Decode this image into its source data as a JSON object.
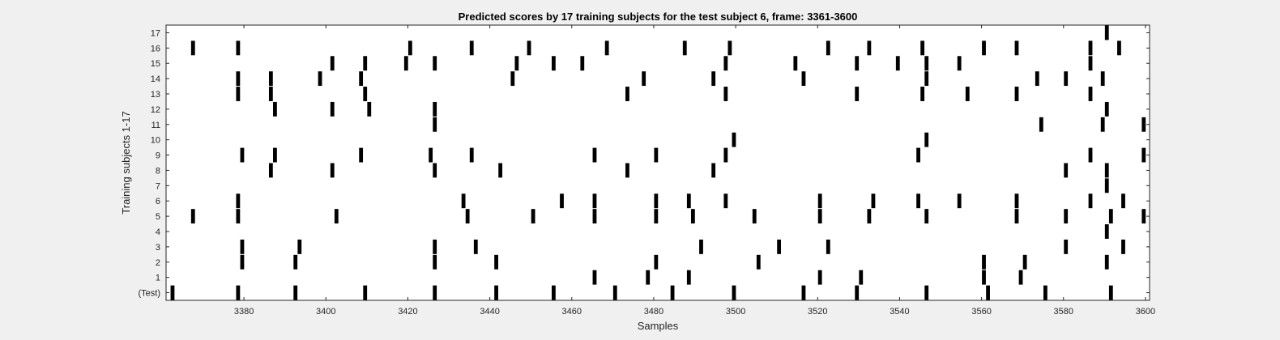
{
  "chart_data": {
    "type": "heatmap",
    "title": "Predicted scores by 17 training subjects for the test subject 6, frame: 3361-3600",
    "xlabel": "Samples",
    "ylabel": "Training subjects 1-17",
    "xlim": [
      3361,
      3600
    ],
    "x_ticks": [
      3380,
      3400,
      3420,
      3440,
      3460,
      3480,
      3500,
      3520,
      3540,
      3560,
      3580,
      3600
    ],
    "y_ticks": [
      "(Test)",
      "1",
      "2",
      "3",
      "4",
      "5",
      "6",
      "7",
      "8",
      "9",
      "10",
      "11",
      "12",
      "13",
      "14",
      "15",
      "16",
      "17"
    ],
    "mark_color": "#000000",
    "background_color": "#ffffff",
    "grid": false,
    "rows": [
      {
        "label": "(Test)",
        "x": [
          3363,
          3379,
          3393,
          3410,
          3427,
          3442,
          3456,
          3471,
          3485,
          3500,
          3517,
          3530,
          3547,
          3562,
          3576,
          3592
        ]
      },
      {
        "label": "1",
        "x": [
          3466,
          3479,
          3489,
          3521,
          3531,
          3561,
          3570
        ]
      },
      {
        "label": "2",
        "x": [
          3380,
          3393,
          3427,
          3442,
          3481,
          3506,
          3561,
          3571,
          3591
        ]
      },
      {
        "label": "3",
        "x": [
          3380,
          3394,
          3427,
          3437,
          3492,
          3511,
          3523,
          3581,
          3595
        ]
      },
      {
        "label": "4",
        "x": [
          3591
        ]
      },
      {
        "label": "5",
        "x": [
          3368,
          3379,
          3403,
          3435,
          3451,
          3466,
          3481,
          3490,
          3505,
          3521,
          3533,
          3547,
          3569,
          3581,
          3592,
          3600
        ]
      },
      {
        "label": "6",
        "x": [
          3379,
          3434,
          3458,
          3466,
          3481,
          3489,
          3498,
          3521,
          3534,
          3545,
          3555,
          3569,
          3587,
          3595
        ]
      },
      {
        "label": "7",
        "x": [
          3591
        ]
      },
      {
        "label": "8",
        "x": [
          3387,
          3402,
          3427,
          3443,
          3474,
          3495,
          3581,
          3591
        ]
      },
      {
        "label": "9",
        "x": [
          3380,
          3388,
          3409,
          3426,
          3436,
          3466,
          3481,
          3498,
          3545,
          3587,
          3600
        ]
      },
      {
        "label": "10",
        "x": [
          3500,
          3547
        ]
      },
      {
        "label": "11",
        "x": [
          3427,
          3575,
          3590,
          3600
        ]
      },
      {
        "label": "12",
        "x": [
          3388,
          3402,
          3411,
          3427,
          3591
        ]
      },
      {
        "label": "13",
        "x": [
          3379,
          3387,
          3410,
          3474,
          3498,
          3530,
          3546,
          3557,
          3569,
          3587
        ]
      },
      {
        "label": "14",
        "x": [
          3379,
          3387,
          3399,
          3409,
          3446,
          3478,
          3495,
          3517,
          3547,
          3574,
          3581,
          3590
        ]
      },
      {
        "label": "15",
        "x": [
          3402,
          3410,
          3420,
          3427,
          3447,
          3456,
          3463,
          3498,
          3515,
          3530,
          3540,
          3547,
          3555,
          3587
        ]
      },
      {
        "label": "16",
        "x": [
          3368,
          3379,
          3421,
          3436,
          3450,
          3469,
          3488,
          3499,
          3523,
          3533,
          3546,
          3561,
          3569,
          3587,
          3594
        ]
      },
      {
        "label": "17",
        "x": [
          3591
        ]
      }
    ]
  }
}
